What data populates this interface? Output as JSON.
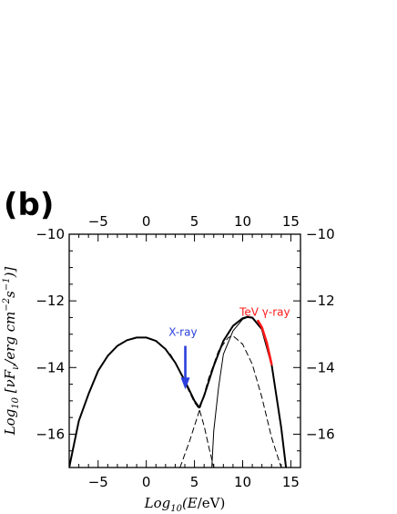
{
  "chart_data": {
    "type": "line",
    "panel_label": "(b)",
    "xlabel": "Log10(E/eV)",
    "ylabel": "Log10 [νFν/erg cm⁻²s⁻¹]",
    "xlim": [
      -8,
      16
    ],
    "ylim": [
      -17,
      -10
    ],
    "x_ticks": [
      -5,
      0,
      5,
      10,
      15
    ],
    "y_ticks": [
      -10,
      -12,
      -14,
      -16
    ],
    "x_tick_labels": [
      "−5",
      "0",
      "5",
      "10",
      "15"
    ],
    "y_tick_labels": [
      "−10",
      "−12",
      "−14",
      "−16"
    ],
    "grid": false,
    "series": [
      {
        "style": "thick-solid",
        "color": "#000000",
        "x": [
          -8,
          -7,
          -6,
          -5,
          -4,
          -3,
          -2,
          -1,
          0,
          1,
          2,
          3,
          4,
          5,
          5.5,
          6,
          7,
          8,
          9,
          10,
          10.5,
          11,
          12,
          13,
          14,
          14.5
        ],
        "y": [
          -17,
          -15.6,
          -14.8,
          -14.1,
          -13.65,
          -13.35,
          -13.18,
          -13.1,
          -13.1,
          -13.2,
          -13.45,
          -13.85,
          -14.4,
          -15.0,
          -15.2,
          -14.85,
          -13.95,
          -13.2,
          -12.75,
          -12.52,
          -12.48,
          -12.5,
          -12.85,
          -13.9,
          -15.8,
          -17
        ]
      },
      {
        "style": "dashed",
        "color": "#000000",
        "x": [
          2.5,
          3,
          3.5,
          4,
          4.5,
          5,
          5.5,
          6,
          6.5,
          7
        ],
        "y": [
          -13.6,
          -13.85,
          -14.15,
          -14.45,
          -14.75,
          -15.05,
          -15.25,
          -15.75,
          -16.4,
          -17
        ]
      },
      {
        "style": "dashed",
        "color": "#000000",
        "x": [
          3.5,
          4.5,
          5.5,
          6.5,
          7.5,
          8.5,
          9,
          10,
          11,
          12,
          13,
          14
        ],
        "y": [
          -17,
          -16.2,
          -15.3,
          -14.3,
          -13.5,
          -13.1,
          -13.05,
          -13.3,
          -13.9,
          -14.9,
          -16.1,
          -17
        ]
      },
      {
        "style": "thin-solid",
        "color": "#000000",
        "x": [
          6.8,
          7,
          7.5,
          8,
          9,
          10,
          10.5,
          11,
          12,
          13,
          14,
          14.5
        ],
        "y": [
          -17,
          -15.9,
          -14.6,
          -13.6,
          -12.9,
          -12.55,
          -12.5,
          -12.52,
          -12.85,
          -13.9,
          -15.8,
          -17
        ]
      },
      {
        "name": "TeV γ-ray",
        "style": "highlight",
        "color": "#ff1a1a",
        "x": [
          11.6,
          12,
          12.5,
          13
        ],
        "y": [
          -12.6,
          -12.8,
          -13.25,
          -13.9
        ]
      }
    ],
    "annotations": [
      {
        "text": "X-ray",
        "color": "#2a3fdc",
        "x": 3.8,
        "y": -13.05
      },
      {
        "text": "TeV γ-ray",
        "color": "#ff1a1a",
        "x": 12.3,
        "y": -12.45
      }
    ],
    "arrow": {
      "color": "#2a3fdc",
      "x": 4.05,
      "y_start": -13.35,
      "y_end": -14.6
    }
  }
}
